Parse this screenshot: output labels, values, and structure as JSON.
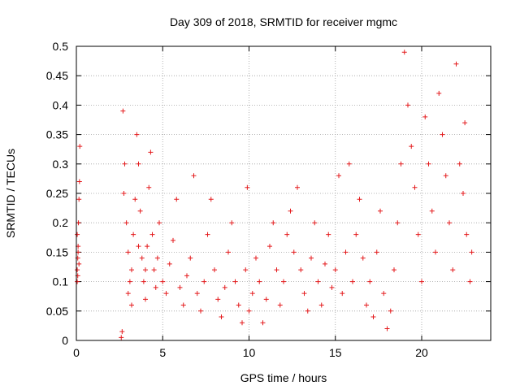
{
  "chart_data": {
    "type": "scatter",
    "title": "Day 309 of 2018, SRMTID for receiver mgmc",
    "xlabel": "GPS time / hours",
    "ylabel": "SRMTID / TECUs",
    "xlim": [
      0,
      24
    ],
    "ylim": [
      0,
      0.5
    ],
    "x_ticks": [
      "0",
      "5",
      "10",
      "15",
      "20"
    ],
    "x_tick_values": [
      0,
      5,
      10,
      15,
      20
    ],
    "y_ticks": [
      "0",
      "0.05",
      "0.1",
      "0.15",
      "0.2",
      "0.25",
      "0.3",
      "0.35",
      "0.4",
      "0.45",
      "0.5"
    ],
    "y_tick_values": [
      0,
      0.05,
      0.1,
      0.15,
      0.2,
      0.25,
      0.3,
      0.35,
      0.4,
      0.45,
      0.5
    ],
    "grid": true,
    "marker": "plus",
    "series_color": "#e41a1c",
    "series": [
      {
        "points": [
          [
            0.05,
            0.1
          ],
          [
            0.05,
            0.12
          ],
          [
            0.08,
            0.14
          ],
          [
            0.1,
            0.16
          ],
          [
            0.05,
            0.18
          ],
          [
            0.12,
            0.2
          ],
          [
            0.15,
            0.24
          ],
          [
            0.18,
            0.27
          ],
          [
            0.2,
            0.33
          ],
          [
            0.1,
            0.15
          ],
          [
            0.08,
            0.11
          ],
          [
            0.15,
            0.13
          ],
          [
            2.6,
            0.005
          ],
          [
            2.65,
            0.015
          ],
          [
            2.7,
            0.39
          ],
          [
            2.8,
            0.3
          ],
          [
            2.75,
            0.25
          ],
          [
            2.9,
            0.2
          ],
          [
            3.0,
            0.15
          ],
          [
            3.1,
            0.1
          ],
          [
            3.0,
            0.08
          ],
          [
            3.2,
            0.12
          ],
          [
            3.3,
            0.18
          ],
          [
            3.4,
            0.24
          ],
          [
            3.5,
            0.35
          ],
          [
            3.6,
            0.3
          ],
          [
            3.7,
            0.22
          ],
          [
            3.8,
            0.14
          ],
          [
            3.9,
            0.1
          ],
          [
            4.0,
            0.07
          ],
          [
            4.1,
            0.16
          ],
          [
            4.2,
            0.26
          ],
          [
            4.3,
            0.32
          ],
          [
            4.4,
            0.18
          ],
          [
            4.5,
            0.12
          ],
          [
            4.6,
            0.09
          ],
          [
            4.7,
            0.14
          ],
          [
            4.8,
            0.2
          ],
          [
            3.2,
            0.06
          ],
          [
            3.6,
            0.16
          ],
          [
            4.0,
            0.12
          ],
          [
            5.0,
            0.1
          ],
          [
            5.2,
            0.08
          ],
          [
            5.4,
            0.13
          ],
          [
            5.6,
            0.17
          ],
          [
            5.8,
            0.24
          ],
          [
            6.0,
            0.09
          ],
          [
            6.2,
            0.06
          ],
          [
            6.4,
            0.11
          ],
          [
            6.6,
            0.14
          ],
          [
            6.8,
            0.28
          ],
          [
            7.0,
            0.08
          ],
          [
            7.2,
            0.05
          ],
          [
            7.4,
            0.1
          ],
          [
            7.6,
            0.18
          ],
          [
            7.8,
            0.24
          ],
          [
            8.0,
            0.12
          ],
          [
            8.2,
            0.07
          ],
          [
            8.4,
            0.04
          ],
          [
            8.6,
            0.09
          ],
          [
            8.8,
            0.15
          ],
          [
            9.0,
            0.2
          ],
          [
            9.2,
            0.1
          ],
          [
            9.4,
            0.06
          ],
          [
            9.6,
            0.03
          ],
          [
            9.8,
            0.12
          ],
          [
            9.9,
            0.26
          ],
          [
            10.0,
            0.05
          ],
          [
            10.2,
            0.08
          ],
          [
            10.4,
            0.14
          ],
          [
            10.6,
            0.1
          ],
          [
            10.8,
            0.03
          ],
          [
            11.0,
            0.07
          ],
          [
            11.2,
            0.16
          ],
          [
            11.4,
            0.2
          ],
          [
            11.6,
            0.12
          ],
          [
            11.8,
            0.06
          ],
          [
            12.0,
            0.1
          ],
          [
            12.2,
            0.18
          ],
          [
            12.4,
            0.22
          ],
          [
            12.6,
            0.15
          ],
          [
            12.8,
            0.26
          ],
          [
            13.0,
            0.12
          ],
          [
            13.2,
            0.08
          ],
          [
            13.4,
            0.05
          ],
          [
            13.6,
            0.14
          ],
          [
            13.8,
            0.2
          ],
          [
            14.0,
            0.1
          ],
          [
            14.2,
            0.06
          ],
          [
            14.4,
            0.13
          ],
          [
            14.6,
            0.18
          ],
          [
            14.8,
            0.09
          ],
          [
            15.0,
            0.12
          ],
          [
            15.2,
            0.28
          ],
          [
            15.4,
            0.08
          ],
          [
            15.6,
            0.15
          ],
          [
            15.8,
            0.3
          ],
          [
            16.0,
            0.1
          ],
          [
            16.2,
            0.18
          ],
          [
            16.4,
            0.24
          ],
          [
            16.6,
            0.14
          ],
          [
            16.8,
            0.06
          ],
          [
            17.0,
            0.1
          ],
          [
            17.2,
            0.04
          ],
          [
            17.4,
            0.15
          ],
          [
            17.6,
            0.22
          ],
          [
            17.8,
            0.08
          ],
          [
            18.0,
            0.02
          ],
          [
            18.2,
            0.05
          ],
          [
            18.4,
            0.12
          ],
          [
            18.6,
            0.2
          ],
          [
            18.8,
            0.3
          ],
          [
            19.0,
            0.49
          ],
          [
            19.2,
            0.4
          ],
          [
            19.4,
            0.33
          ],
          [
            19.6,
            0.26
          ],
          [
            19.8,
            0.18
          ],
          [
            20.0,
            0.1
          ],
          [
            20.2,
            0.38
          ],
          [
            20.4,
            0.3
          ],
          [
            20.6,
            0.22
          ],
          [
            20.8,
            0.15
          ],
          [
            21.0,
            0.42
          ],
          [
            21.2,
            0.35
          ],
          [
            21.4,
            0.28
          ],
          [
            21.6,
            0.2
          ],
          [
            21.8,
            0.12
          ],
          [
            22.0,
            0.47
          ],
          [
            22.2,
            0.3
          ],
          [
            22.4,
            0.25
          ],
          [
            22.6,
            0.18
          ],
          [
            22.8,
            0.1
          ],
          [
            22.9,
            0.15
          ],
          [
            22.5,
            0.37
          ]
        ]
      }
    ]
  }
}
